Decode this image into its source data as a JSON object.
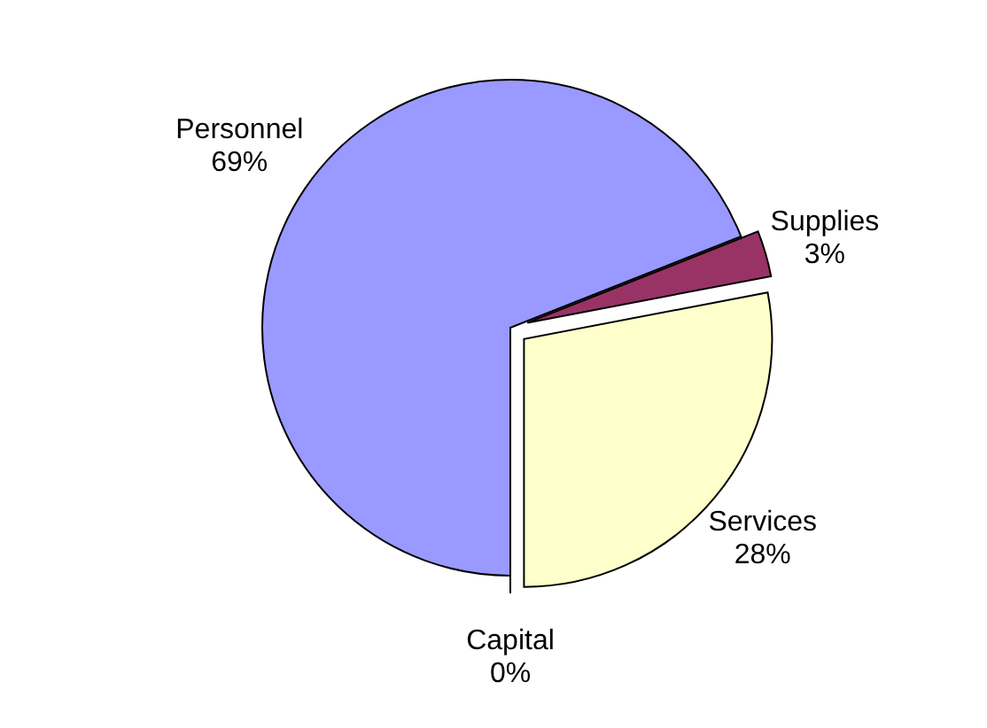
{
  "chart_data": {
    "type": "pie",
    "categories": [
      "Capital",
      "Personnel",
      "Supplies",
      "Services"
    ],
    "values": [
      0,
      69,
      3,
      28
    ],
    "colors": [
      "#ccffff",
      "#9999ff",
      "#993366",
      "#ffffcc"
    ],
    "value_labels": [
      "0%",
      "69%",
      "3%",
      "28%"
    ]
  }
}
